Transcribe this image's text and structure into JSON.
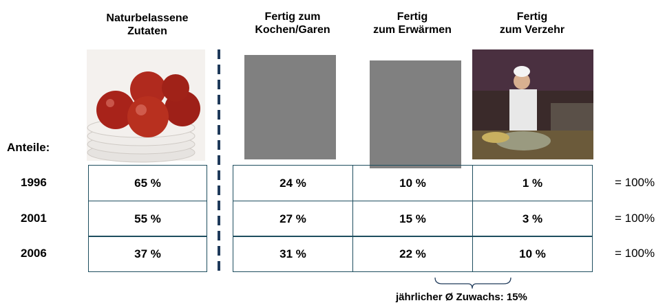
{
  "label": "Anteile:",
  "columns": [
    {
      "lines": [
        "Naturbelassene",
        "Zutaten"
      ]
    },
    {
      "lines": [
        "Fertig zum",
        "Kochen/Garen"
      ]
    },
    {
      "lines": [
        "Fertig",
        "zum Erwärmen"
      ]
    },
    {
      "lines": [
        "Fertig",
        "zum Verzehr"
      ]
    }
  ],
  "rows": [
    {
      "year": "1996",
      "cells": [
        "65 %",
        "24 %",
        "10 %",
        "1 %"
      ],
      "total": "= 100%"
    },
    {
      "year": "2001",
      "cells": [
        "55 %",
        "27 %",
        "15 %",
        "3 %"
      ],
      "total": "= 100%"
    },
    {
      "year": "2006",
      "cells": [
        "37 %",
        "31 %",
        "22 %",
        "10 %"
      ],
      "total": "= 100%"
    }
  ],
  "annotation": "jährlicher Ø Zuwachs: 15%"
}
